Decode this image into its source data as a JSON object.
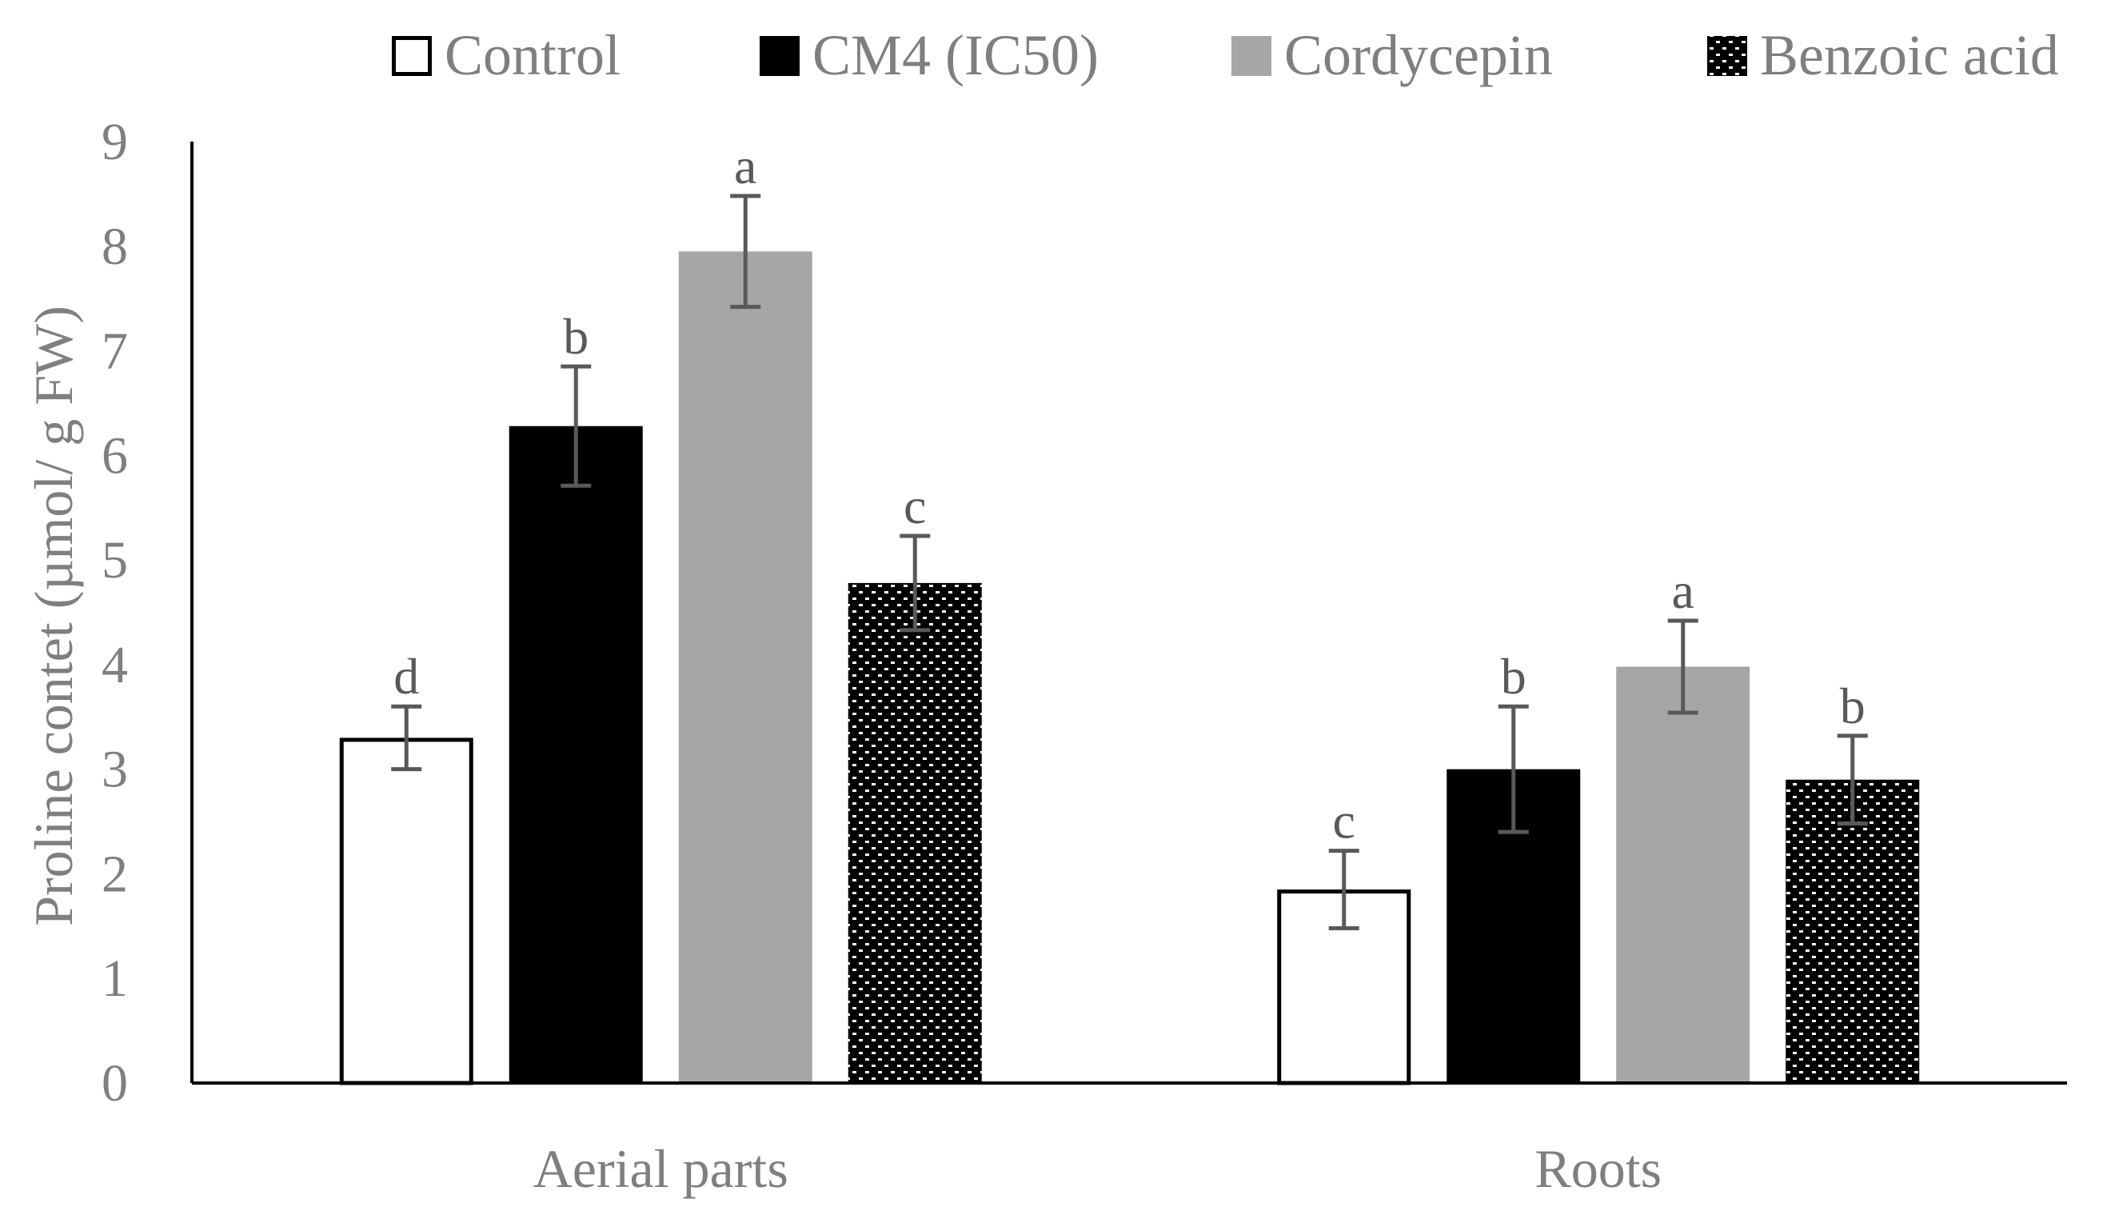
{
  "chart_data": {
    "type": "bar",
    "title": "",
    "xlabel": "",
    "ylabel": "Proline contet (µmol/ g FW)",
    "ylim": [
      0,
      9
    ],
    "yticks": [
      0,
      1,
      2,
      3,
      4,
      5,
      6,
      7,
      8,
      9
    ],
    "categories": [
      "Aerial parts",
      "Roots"
    ],
    "legend_position": "top",
    "grid": false,
    "series": [
      {
        "name": "Control",
        "style": "white-outline",
        "values": [
          3.3,
          1.85
        ],
        "errors": [
          0.3,
          0.37
        ],
        "labels": [
          "d",
          "c"
        ]
      },
      {
        "name": "CM4 (IC50)",
        "style": "black",
        "values": [
          6.28,
          3.0
        ],
        "errors": [
          0.57,
          0.6
        ],
        "labels": [
          "b",
          "b"
        ]
      },
      {
        "name": "Cordycepin",
        "style": "gray",
        "values": [
          7.95,
          3.98
        ],
        "errors": [
          0.53,
          0.44
        ],
        "labels": [
          "a",
          "a"
        ]
      },
      {
        "name": "Benzoic acid",
        "style": "checker",
        "values": [
          4.78,
          2.9
        ],
        "errors": [
          0.45,
          0.42
        ],
        "labels": [
          "c",
          "b"
        ]
      }
    ],
    "colors": {
      "axis": "#000000",
      "text": "#7f7f7f",
      "error_bar": "#595959",
      "black_fill": "#000000",
      "gray_fill": "#a6a6a6",
      "white_fill": "#ffffff"
    }
  }
}
